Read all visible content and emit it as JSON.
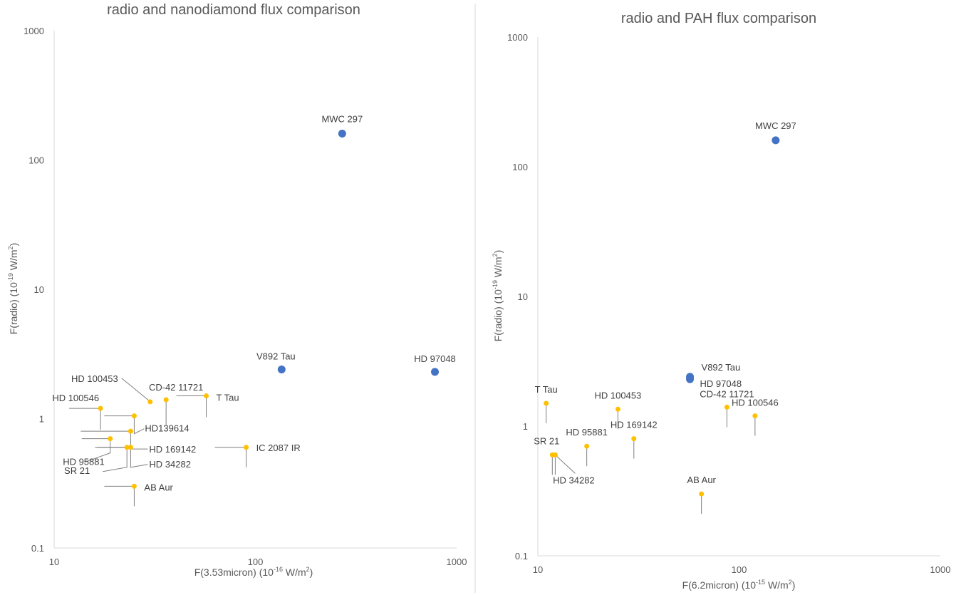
{
  "chart_data": [
    {
      "type": "scatter",
      "title": "radio and nanodiamond flux comparison",
      "xlabel_main": "F(3.53micron) (10",
      "xlabel_exp": "-16",
      "xlabel_tail": " W/m",
      "xlabel_exp2": "2",
      "xlabel_end": ")",
      "ylabel_main": "F(radio) (10",
      "ylabel_exp": "-19",
      "ylabel_tail": " W/m",
      "ylabel_exp2": "2",
      "ylabel_end": ")",
      "xscale": "log",
      "yscale": "log",
      "xlim": [
        10,
        1000
      ],
      "ylim": [
        0.1,
        1000
      ],
      "xticks": [
        "10",
        "100",
        "1000"
      ],
      "yticks": [
        "0.1",
        "1",
        "10",
        "100",
        "1000"
      ],
      "grid": false,
      "series": [
        {
          "color": "#4472c4",
          "points": [
            {
              "label": "MWC 297",
              "x": 270,
              "y": 160
            },
            {
              "label": "V892 Tau",
              "x": 135,
              "y": 2.4
            },
            {
              "label": "HD 97048",
              "x": 780,
              "y": 2.3
            }
          ]
        },
        {
          "color": "#ffc000",
          "points": [
            {
              "label": "HD 100453",
              "x": 30,
              "y": 1.35
            },
            {
              "label": "CD-42 11721",
              "x": 36,
              "y": 1.4
            },
            {
              "label": "T Tau",
              "x": 57,
              "y": 1.5
            },
            {
              "label": "HD 100546",
              "x": 17,
              "y": 1.2
            },
            {
              "label": "HD139614",
              "x": 25,
              "y": 1.05
            },
            {
              "label": "HD 169142",
              "x": 24,
              "y": 0.8
            },
            {
              "label": "HD 95881",
              "x": 19,
              "y": 0.7
            },
            {
              "label": "SR 21",
              "x": 23,
              "y": 0.6
            },
            {
              "label": "HD 34282",
              "x": 24,
              "y": 0.6
            },
            {
              "label": "IC 2087 IR",
              "x": 90,
              "y": 0.6
            },
            {
              "label": "AB Aur",
              "x": 25,
              "y": 0.3
            }
          ]
        }
      ]
    },
    {
      "type": "scatter",
      "title": "radio and PAH flux comparison",
      "xlabel_main": "F(6.2micron) (10",
      "xlabel_exp": "-15",
      "xlabel_tail": " W/m",
      "xlabel_exp2": "2",
      "xlabel_end": ")",
      "ylabel_main": "F(radio) (10",
      "ylabel_exp": "-19",
      "ylabel_tail": " W/m",
      "ylabel_exp2": "2",
      "ylabel_end": ")",
      "xscale": "log",
      "yscale": "log",
      "xlim": [
        10,
        1000
      ],
      "ylim": [
        0.1,
        1000
      ],
      "xticks": [
        "10",
        "100",
        "1000"
      ],
      "yticks": [
        "0.1",
        "1",
        "10",
        "100",
        "1000"
      ],
      "grid": false,
      "series": [
        {
          "color": "#4472c4",
          "points": [
            {
              "label": "MWC 297",
              "x": 152,
              "y": 160
            },
            {
              "label": "V892 Tau",
              "x": 57,
              "y": 2.4
            },
            {
              "label": "HD 97048",
              "x": 57,
              "y": 2.3
            }
          ]
        },
        {
          "color": "#ffc000",
          "points": [
            {
              "label": "T Tau",
              "x": 11,
              "y": 1.5
            },
            {
              "label": "HD 100453",
              "x": 25,
              "y": 1.35
            },
            {
              "label": "CD-42 11721",
              "x": 87,
              "y": 1.4
            },
            {
              "label": "HD 100546",
              "x": 120,
              "y": 1.2
            },
            {
              "label": "HD 95881",
              "x": 17.5,
              "y": 0.7
            },
            {
              "label": "HD 169142",
              "x": 30,
              "y": 0.8
            },
            {
              "label": "SR 21",
              "x": 11.8,
              "y": 0.6
            },
            {
              "label": "HD 34282",
              "x": 12.2,
              "y": 0.6
            },
            {
              "label": "AB Aur",
              "x": 65,
              "y": 0.3
            }
          ]
        }
      ]
    }
  ]
}
